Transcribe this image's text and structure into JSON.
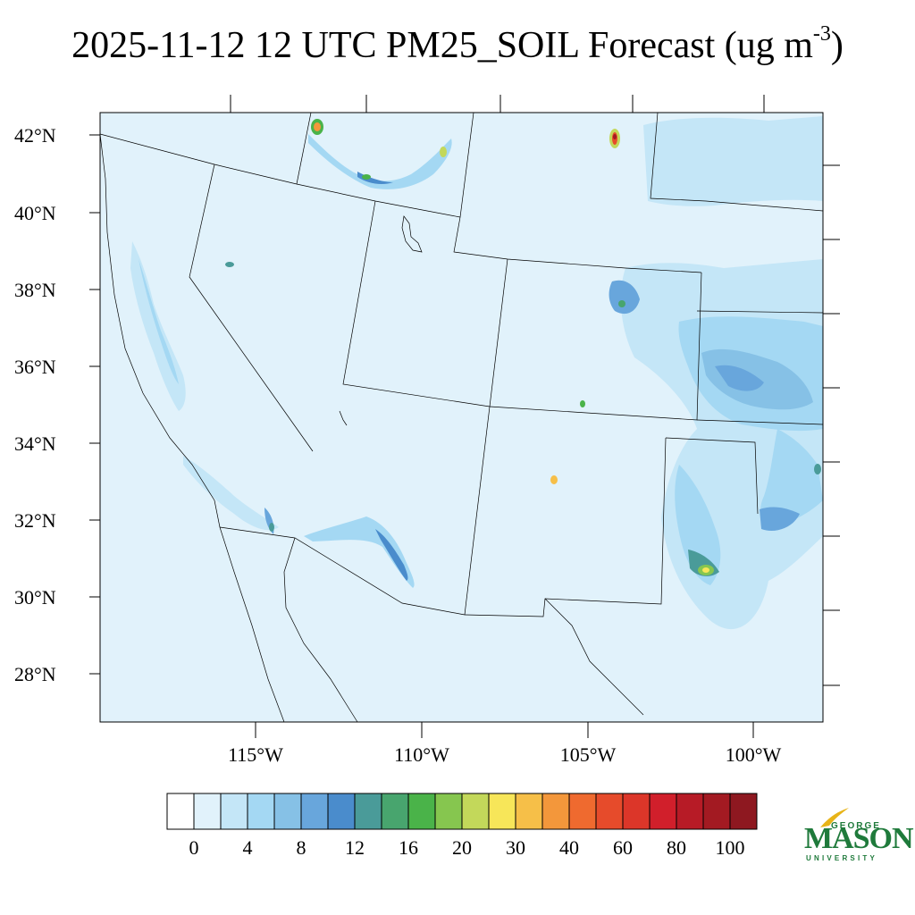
{
  "title": {
    "main": "2025-11-12 12 UTC PM25_SOIL Forecast (ug m",
    "superscript": "-3",
    "close": ")"
  },
  "lat_labels": [
    "42°N",
    "40°N",
    "38°N",
    "36°N",
    "34°N",
    "32°N",
    "30°N",
    "28°N"
  ],
  "lon_labels": [
    "115°W",
    "110°W",
    "105°W",
    "100°W"
  ],
  "colorbar": {
    "labels": [
      "0",
      "4",
      "8",
      "12",
      "16",
      "20",
      "30",
      "40",
      "60",
      "80",
      "100"
    ],
    "colors": [
      "#ffffff",
      "#e1f2fb",
      "#c4e6f7",
      "#a4d8f3",
      "#86c1e6",
      "#68a6dc",
      "#4a8ccc",
      "#4a9b99",
      "#48a56e",
      "#4ab349",
      "#86c64f",
      "#c3d85a",
      "#f7e659",
      "#f6bf48",
      "#f3973b",
      "#ef6a2f",
      "#e64b2b",
      "#dc3629",
      "#d11f2b",
      "#b71b26",
      "#a31a22",
      "#8e1820"
    ]
  },
  "map": {
    "background_color": "#e1f2fb",
    "boundary_color": "#000000"
  },
  "logo": {
    "george": "GEORGE",
    "mason": "MASON",
    "university": "UNIVERSITY",
    "color": "#1f7a3b",
    "accent": "#e8b418"
  }
}
